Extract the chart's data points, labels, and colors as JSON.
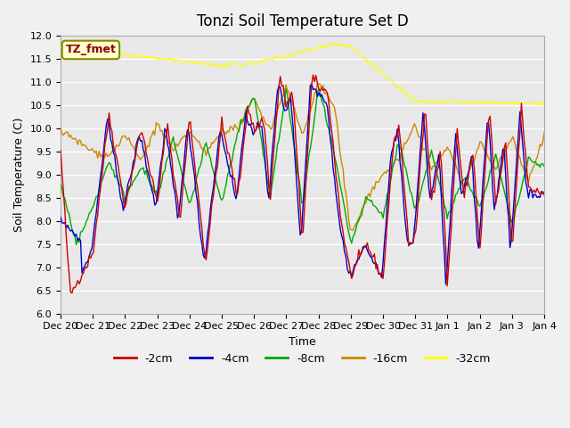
{
  "title": "Tonzi Soil Temperature Set D",
  "xlabel": "Time",
  "ylabel": "Soil Temperature (C)",
  "ylim": [
    6.0,
    12.0
  ],
  "yticks": [
    6.0,
    6.5,
    7.0,
    7.5,
    8.0,
    8.5,
    9.0,
    9.5,
    10.0,
    10.5,
    11.0,
    11.5,
    12.0
  ],
  "xtick_labels": [
    "Dec 20",
    "Dec 21",
    "Dec 22",
    "Dec 23",
    "Dec 24",
    "Dec 25",
    "Dec 26",
    "Dec 27",
    "Dec 28",
    "Dec 29",
    "Dec 30",
    "Dec 31",
    "Jan 1",
    "Jan 2",
    "Jan 3",
    "Jan 4"
  ],
  "colors": {
    "-2cm": "#cc0000",
    "-4cm": "#0000cc",
    "-8cm": "#00aa00",
    "-16cm": "#cc8800",
    "-32cm": "#ffff00"
  },
  "legend_label": "TZ_fmet",
  "legend_box_color": "#ffffcc",
  "legend_box_edge": "#888800",
  "bg_color": "#e8e8e8",
  "plot_bg_color": "#e8e8e8",
  "grid_color": "#ffffff",
  "n_points": 340
}
